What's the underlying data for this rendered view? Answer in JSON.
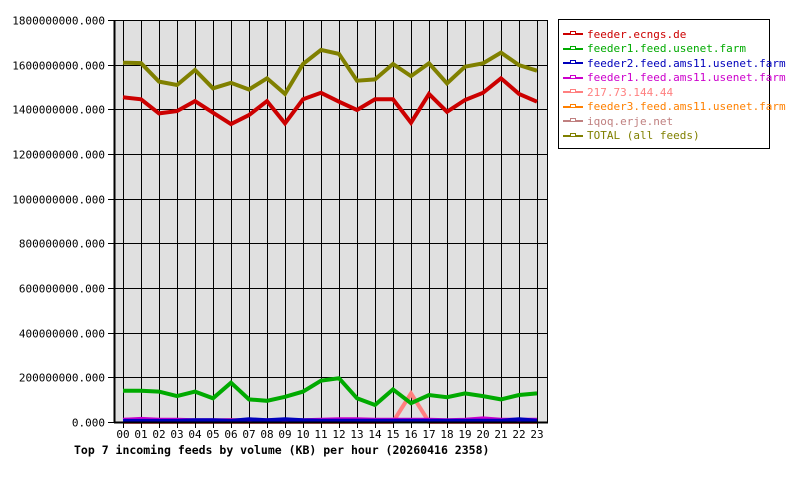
{
  "chart_data": {
    "type": "line",
    "title": "Top 7 incoming feeds by volume (KB) per hour (20260416 2358)",
    "xlabel": "",
    "ylabel": "",
    "categories": [
      "00",
      "01",
      "02",
      "03",
      "04",
      "05",
      "06",
      "07",
      "08",
      "09",
      "10",
      "11",
      "12",
      "13",
      "14",
      "15",
      "16",
      "17",
      "18",
      "19",
      "20",
      "21",
      "22",
      "23"
    ],
    "y_ticks": [
      "0.000",
      "200000000.000",
      "400000000.000",
      "600000000.000",
      "800000000.000",
      "1000000000.000",
      "1200000000.000",
      "1400000000.000",
      "1600000000.000",
      "1800000000.000"
    ],
    "ylim": [
      0,
      1800000000
    ],
    "grid": true,
    "legend_position": "right",
    "series": [
      {
        "name": "feeder.ecngs.de",
        "color": "#cc0000",
        "values": [
          1454000000,
          1445000000,
          1382000000,
          1392000000,
          1437000000,
          1385000000,
          1334000000,
          1374000000,
          1437000000,
          1337000000,
          1445000000,
          1474000000,
          1434000000,
          1397000000,
          1445000000,
          1445000000,
          1340000000,
          1469000000,
          1389000000,
          1442000000,
          1474000000,
          1539000000,
          1469000000,
          1434000000
        ]
      },
      {
        "name": "feeder1.feed.usenet.farm",
        "color": "#00aa00",
        "values": [
          140000000,
          140000000,
          136000000,
          116000000,
          136000000,
          106000000,
          176000000,
          101000000,
          95000000,
          113000000,
          136000000,
          185000000,
          196000000,
          106000000,
          76000000,
          146000000,
          84000000,
          121000000,
          111000000,
          128000000,
          116000000,
          101000000,
          121000000,
          128000000
        ]
      },
      {
        "name": "feeder2.feed.ams11.usenet.farm",
        "color": "#0000bb",
        "values": [
          5000000,
          5000000,
          5000000,
          5000000,
          8000000,
          8000000,
          5000000,
          12000000,
          8000000,
          12000000,
          8000000,
          6000000,
          6000000,
          6000000,
          6000000,
          6000000,
          6000000,
          6000000,
          6000000,
          6000000,
          6000000,
          6000000,
          12000000,
          6000000
        ]
      },
      {
        "name": "feeder1.feed.ams11.usenet.farm",
        "color": "#cc00cc",
        "values": [
          10000000,
          14000000,
          10000000,
          10000000,
          8000000,
          8000000,
          8000000,
          8000000,
          8000000,
          8000000,
          8000000,
          10000000,
          12000000,
          12000000,
          10000000,
          10000000,
          10000000,
          10000000,
          8000000,
          10000000,
          16000000,
          10000000,
          10000000,
          10000000
        ]
      },
      {
        "name": "217.73.144.44",
        "color": "#ff8080",
        "values": [
          0,
          0,
          0,
          0,
          0,
          0,
          0,
          0,
          0,
          0,
          0,
          0,
          0,
          0,
          0,
          0,
          128000000,
          0,
          0,
          0,
          0,
          0,
          0,
          0
        ]
      },
      {
        "name": "feeder3.feed.ams11.usenet.farm",
        "color": "#ff8000",
        "values": [
          6000000,
          6000000,
          8000000,
          6000000,
          6000000,
          6000000,
          8000000,
          6000000,
          6000000,
          6000000,
          6000000,
          6000000,
          4000000,
          6000000,
          6000000,
          6000000,
          6000000,
          6000000,
          4000000,
          6000000,
          6000000,
          6000000,
          6000000,
          6000000
        ]
      },
      {
        "name": "iqoq.erje.net",
        "color": "#c08080",
        "values": [
          3000000,
          3000000,
          3000000,
          3000000,
          3000000,
          3000000,
          3000000,
          3000000,
          3000000,
          3000000,
          3000000,
          3000000,
          3000000,
          3000000,
          3000000,
          3000000,
          3000000,
          3000000,
          3000000,
          3000000,
          3000000,
          3000000,
          3000000,
          3000000
        ]
      },
      {
        "name": "TOTAL (all feeds)",
        "color": "#808000",
        "values": [
          1609000000,
          1607000000,
          1524000000,
          1509000000,
          1576000000,
          1494000000,
          1519000000,
          1489000000,
          1539000000,
          1469000000,
          1603000000,
          1666000000,
          1648000000,
          1528000000,
          1534000000,
          1603000000,
          1549000000,
          1606000000,
          1516000000,
          1591000000,
          1606000000,
          1654000000,
          1598000000,
          1573000000
        ]
      }
    ]
  },
  "legend": {
    "items": [
      {
        "label": "feeder.ecngs.de",
        "color": "#cc0000"
      },
      {
        "label": "feeder1.feed.usenet.farm",
        "color": "#00aa00"
      },
      {
        "label": "feeder2.feed.ams11.usenet.farm",
        "color": "#0000bb"
      },
      {
        "label": "feeder1.feed.ams11.usenet.farm",
        "color": "#cc00cc"
      },
      {
        "label": "217.73.144.44",
        "color": "#ff8080"
      },
      {
        "label": "feeder3.feed.ams11.usenet.farm",
        "color": "#ff8000"
      },
      {
        "label": "iqoq.erje.net",
        "color": "#c08080"
      },
      {
        "label": "TOTAL (all feeds)",
        "color": "#808000"
      }
    ]
  },
  "colors": {
    "plot_background": "#e0e0e0",
    "grid": "#000000",
    "axis": "#000000"
  }
}
